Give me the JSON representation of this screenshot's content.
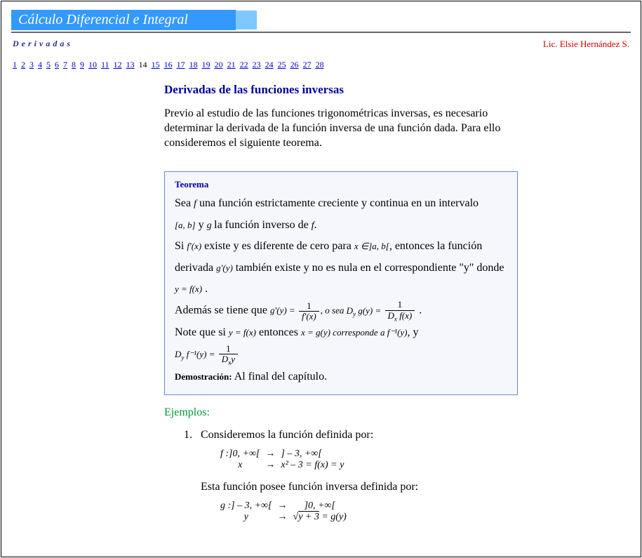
{
  "banner": {
    "title": "Cálculo Diferencial e Integral"
  },
  "subhead": {
    "left": "Derivadas",
    "right": "Lic. Elsie Hernández S."
  },
  "pagenav": {
    "pages": [
      "1",
      "2",
      "3",
      "4",
      "5",
      "6",
      "7",
      "8",
      "9",
      "10",
      "11",
      "12",
      "13",
      "14",
      "15",
      "16",
      "17",
      "18",
      "19",
      "20",
      "21",
      "22",
      "23",
      "24",
      "25",
      "26",
      "27",
      "28"
    ],
    "current": "14"
  },
  "section": {
    "title": "Derivadas de las funciones inversas"
  },
  "intro": "Previo al estudio de las funciones trigonométricas inversas, es necesario determinar la derivada de la función inversa de una función dada. Para ello consideremos el siguiente teorema.",
  "theorem": {
    "label": "Teorema",
    "line1a": "Sea ",
    "line1_f": "f",
    "line1b": " una función estrictamente creciente y continua en un intervalo",
    "line2_ab": "[a, b]",
    "line2_y": "  y ",
    "line2_g": " g ",
    "line2b": " la función inverso de ",
    "line2_f": "f",
    "line2c": ".",
    "line3a": "Si ",
    "line3_fpx": "f'(x)",
    "line3b": " existe y es diferente de cero para ",
    "line3_x": "x ∈]a, b[",
    "line3c": ", entonces la función",
    "line4a": "derivada ",
    "line4_gpy": "g'(y)",
    "line4b": " también existe y no es nula en el correspondiente \"y\" donde",
    "line5": "y = f(x)",
    "line6a": "Además se tiene que ",
    "line6_gpy": "g'(y) = ",
    "line6_num1": "1",
    "line6_den1": "f'(x)",
    "line6_osea": ",  o sea  ",
    "line6_dyg": "D",
    "line6_dyg_sub": "y",
    "line6_dyg2": " g(y) = ",
    "line6_num2": "1",
    "line6_den2a": "D",
    "line6_den2b": "x",
    "line6_den2c": " f(x)",
    "line7a": "Note que si ",
    "line7_yfx": "y = f(x)",
    "line7b": " entonces ",
    "line7_xgy": "x = g(y)",
    "line7_corr": "  corresponde a  ",
    "line7_finv": "f⁻¹(y)",
    "line7c": ", y",
    "line8a": "D",
    "line8a_sub": "y",
    "line8b": " f⁻¹(y) = ",
    "line8_num": "1",
    "line8_denA": "D",
    "line8_denB": "x",
    "line8_denC": "y",
    "demostr_label": "Demostración:",
    "demostr_text": " Al final del capítulo."
  },
  "ejemplos": "Ejemplos:",
  "ex1": {
    "intro": "Consideremos la función definida por:",
    "row1c1": "f :]0, +∞[",
    "row1c2": "→",
    "row1c3": "] – 3, +∞[",
    "row2c1": "x",
    "row2c2": "→",
    "row2c3": "x² – 3 = f(x) = y",
    "mid": "Esta función posee función inversa definida por:",
    "row3c1": "g :] – 3, +∞[",
    "row3c2": "→",
    "row3c3": "]0, +∞[",
    "row4c1": "y",
    "row4c2": "→",
    "row4c3a": "√",
    "row4c3b": "y + 3",
    "row4c3c": " = g(y)"
  },
  "colors": {
    "banner_bg": "#3399ff",
    "banner_light": "#7fc8ff",
    "rule": "#666666",
    "link": "#0000cc",
    "heading": "#000099",
    "author": "#cc0000",
    "box_border": "#6688cc",
    "box_bg": "#f5f7fd",
    "ejemplos": "#009933"
  }
}
